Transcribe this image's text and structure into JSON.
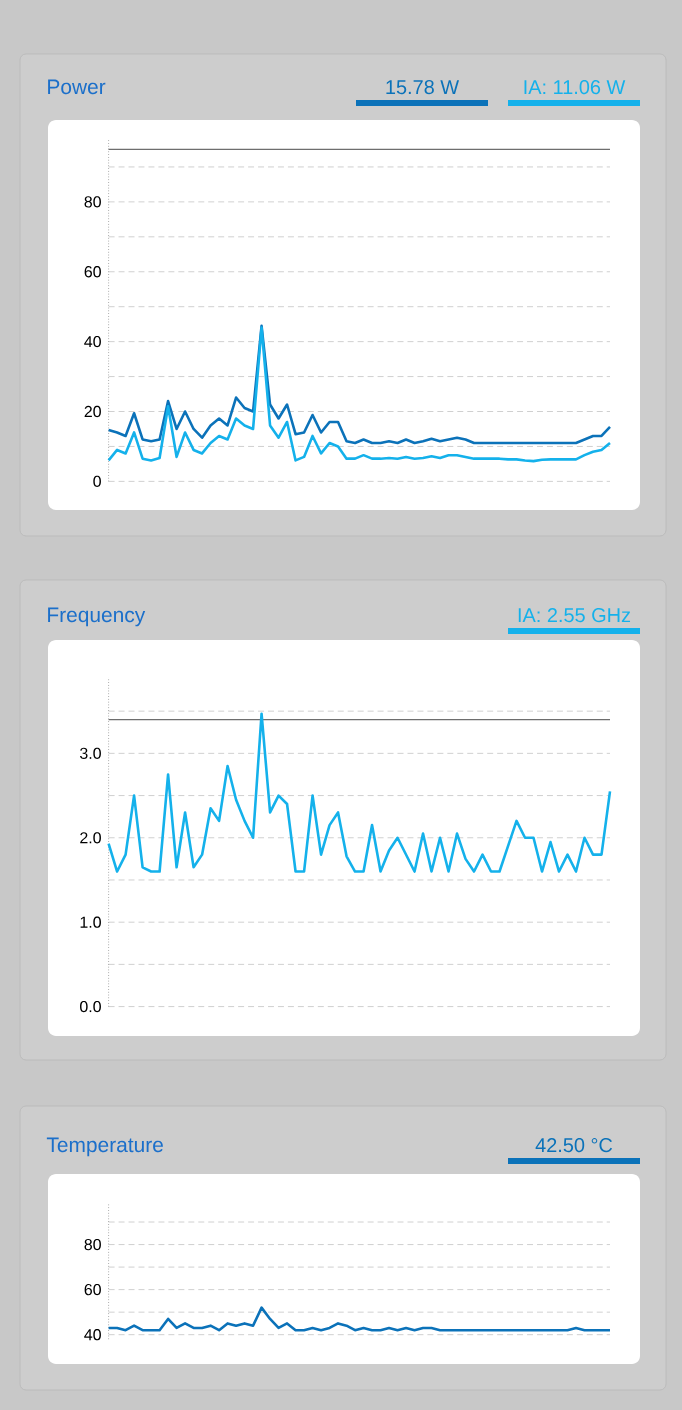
{
  "chart_data": [
    {
      "type": "line",
      "title": "Power",
      "categories": [
        null,
        null,
        null,
        null,
        null,
        null,
        null,
        null,
        null,
        null,
        null,
        null,
        null,
        null,
        null,
        null,
        null,
        null,
        null,
        null,
        null,
        null,
        null,
        null,
        null,
        null,
        null,
        null,
        null,
        null,
        null,
        null,
        null,
        null,
        null,
        null,
        null,
        null,
        null,
        null,
        null,
        null,
        null,
        null,
        null,
        null,
        null,
        null,
        null,
        null,
        null,
        null,
        null,
        null,
        null,
        null,
        null,
        null,
        null,
        null
      ],
      "series": [
        {
          "name": "15.78 W",
          "color": "#0b72b9",
          "values": [
            14.7,
            14,
            13,
            19.5,
            12,
            11.5,
            12,
            23,
            15,
            20,
            15,
            12.5,
            16,
            18,
            16,
            24,
            21,
            20,
            44.5,
            22,
            18,
            22,
            13.5,
            14,
            19,
            14,
            17,
            17,
            11.5,
            11,
            12,
            11,
            11,
            11.5,
            11,
            12,
            11,
            11.5,
            12.2,
            11.5,
            12,
            12.5,
            12,
            11,
            11,
            11,
            11,
            11,
            11,
            11,
            11,
            11,
            11,
            11,
            11,
            11,
            12,
            13,
            13,
            15.6
          ]
        },
        {
          "name": "IA: 11.06 W",
          "color": "#14b1eb",
          "values": [
            6,
            9,
            8,
            14,
            6.5,
            6,
            6.7,
            21.5,
            7,
            14,
            9,
            8,
            11,
            13,
            12,
            18,
            16,
            15,
            44,
            16,
            12.5,
            17,
            6,
            7,
            13,
            8,
            11,
            10,
            6.5,
            6.5,
            7.5,
            6.5,
            6.5,
            6.7,
            6.5,
            7,
            6.5,
            6.7,
            7.2,
            6.7,
            7.5,
            7.5,
            7,
            6.5,
            6.5,
            6.5,
            6.5,
            6.3,
            6.3,
            6,
            5.8,
            6.2,
            6.3,
            6.3,
            6.3,
            6.3,
            7.5,
            8.5,
            9,
            11
          ]
        }
      ],
      "ylim": [
        0,
        98
      ],
      "yticks": [
        0,
        {
          "value": 10,
          "label": null
        },
        20,
        {
          "value": 30,
          "label": null
        },
        40,
        {
          "value": 50,
          "label": null
        },
        60,
        {
          "value": 70,
          "label": null
        },
        80,
        {
          "value": 90,
          "label": null
        }
      ],
      "grid": "y",
      "legend": "top right",
      "tick_labels": "y",
      "ref_lines": [
        {
          "axis": "y",
          "value": 95,
          "color": "#6e6e6e"
        }
      ]
    },
    {
      "type": "line",
      "title": "Frequency",
      "categories": [
        null,
        null,
        null,
        null,
        null,
        null,
        null,
        null,
        null,
        null,
        null,
        null,
        null,
        null,
        null,
        null,
        null,
        null,
        null,
        null,
        null,
        null,
        null,
        null,
        null,
        null,
        null,
        null,
        null,
        null,
        null,
        null,
        null,
        null,
        null,
        null,
        null,
        null,
        null,
        null,
        null,
        null,
        null,
        null,
        null,
        null,
        null,
        null,
        null,
        null,
        null,
        null,
        null,
        null,
        null,
        null,
        null,
        null,
        null,
        null
      ],
      "series": [
        {
          "name": "IA: 2.55 GHz",
          "color": "#14b1eb",
          "values": [
            1.93,
            1.6,
            1.8,
            2.5,
            1.65,
            1.6,
            1.6,
            2.75,
            1.65,
            2.3,
            1.65,
            1.8,
            2.35,
            2.2,
            2.85,
            2.45,
            2.2,
            2,
            3.47,
            2.3,
            2.5,
            2.4,
            1.6,
            1.6,
            2.5,
            1.8,
            2.15,
            2.3,
            1.78,
            1.6,
            1.6,
            2.15,
            1.6,
            1.85,
            2,
            1.8,
            1.6,
            2.05,
            1.6,
            2,
            1.6,
            2.05,
            1.75,
            1.6,
            1.8,
            1.6,
            1.6,
            1.9,
            2.2,
            2,
            2,
            1.6,
            1.95,
            1.6,
            1.8,
            1.6,
            2,
            1.8,
            1.8,
            2.55
          ]
        }
      ],
      "ylim": [
        0,
        3.9
      ],
      "yticks": [
        {
          "value": 0,
          "label": "0.0"
        },
        {
          "value": 0.5,
          "label": null
        },
        {
          "value": 1,
          "label": "1.0"
        },
        {
          "value": 1.5,
          "label": null
        },
        {
          "value": 2,
          "label": "2.0"
        },
        {
          "value": 2.5,
          "label": null
        },
        {
          "value": 3,
          "label": "3.0"
        },
        {
          "value": 3.5,
          "label": null
        }
      ],
      "grid": "y",
      "legend": "top right",
      "tick_labels": "y",
      "ref_lines": [
        {
          "axis": "y",
          "value": 3.4,
          "color": "#6e6e6e"
        }
      ]
    },
    {
      "type": "line",
      "title": "Temperature",
      "categories": [
        null,
        null,
        null,
        null,
        null,
        null,
        null,
        null,
        null,
        null,
        null,
        null,
        null,
        null,
        null,
        null,
        null,
        null,
        null,
        null,
        null,
        null,
        null,
        null,
        null,
        null,
        null,
        null,
        null,
        null,
        null,
        null,
        null,
        null,
        null,
        null,
        null,
        null,
        null,
        null,
        null,
        null,
        null,
        null,
        null,
        null,
        null,
        null,
        null,
        null,
        null,
        null,
        null,
        null,
        null,
        null,
        null,
        null,
        null,
        null
      ],
      "series": [
        {
          "name": "42.50 °C",
          "color": "#0b72b9",
          "values": [
            43,
            43,
            42,
            44,
            42,
            42,
            42,
            47,
            43,
            45,
            43,
            43,
            44,
            42,
            45,
            44,
            45,
            44,
            52,
            47,
            43,
            45,
            42,
            42,
            43,
            42,
            43,
            45,
            44,
            42,
            43,
            42,
            42,
            43,
            42,
            43,
            42,
            43,
            43,
            42,
            42,
            42,
            42,
            42,
            42,
            42,
            42,
            42,
            42,
            42,
            42,
            42,
            42,
            42,
            42,
            43,
            42,
            42,
            42,
            42
          ]
        }
      ],
      "ylim": [
        38,
        98
      ],
      "yticks": [
        40,
        {
          "value": 50,
          "label": null
        },
        60,
        {
          "value": 70,
          "label": null
        },
        80,
        {
          "value": 90,
          "label": null
        }
      ],
      "grid": "y",
      "legend": "top right",
      "tick_labels": "y"
    }
  ]
}
